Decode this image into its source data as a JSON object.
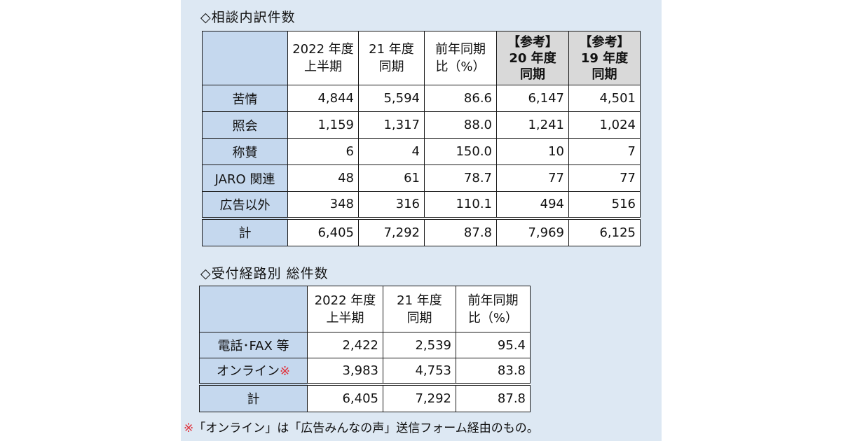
{
  "table1": {
    "heading": "◇相談内訳件数",
    "headers": [
      [
        "2022 年度",
        "上半期"
      ],
      [
        "21 年度",
        "同期"
      ],
      [
        "前年同期",
        "比（%）"
      ],
      [
        "【参考】",
        "20 年度",
        "同期"
      ],
      [
        "【参考】",
        "19 年度",
        "同期"
      ]
    ],
    "rows": [
      {
        "label": "苦情",
        "values": [
          "4,844",
          "5,594",
          "86.6",
          "6,147",
          "4,501"
        ]
      },
      {
        "label": "照会",
        "values": [
          "1,159",
          "1,317",
          "88.0",
          "1,241",
          "1,024"
        ]
      },
      {
        "label": "称賛",
        "values": [
          "6",
          "4",
          "150.0",
          "10",
          "7"
        ]
      },
      {
        "label": "JARO 関連",
        "values": [
          "48",
          "61",
          "78.7",
          "77",
          "77"
        ]
      },
      {
        "label": "広告以外",
        "values": [
          "348",
          "316",
          "110.1",
          "494",
          "516"
        ]
      },
      {
        "label": "計",
        "values": [
          "6,405",
          "7,292",
          "87.8",
          "7,969",
          "6,125"
        ]
      }
    ]
  },
  "table2": {
    "heading": "◇受付経路別 総件数",
    "headers": [
      [
        "2022 年度",
        "上半期"
      ],
      [
        "21 年度",
        "同期"
      ],
      [
        "前年同期",
        "比（%）"
      ]
    ],
    "rows": [
      {
        "label": "電話･FAX 等",
        "values": [
          "2,422",
          "2,539",
          "95.4"
        ]
      },
      {
        "label": "オンライン",
        "mark": "※",
        "values": [
          "3,983",
          "4,753",
          "83.8"
        ]
      },
      {
        "label": "計",
        "values": [
          "6,405",
          "7,292",
          "87.8"
        ]
      }
    ]
  },
  "footnote": {
    "mark": "※",
    "text": "「オンライン」は「広告みんなの声」送信フォーム経由のもの。"
  },
  "colors": {
    "panel_background": "#dde8f3",
    "row_header_fill": "#c5d8ee",
    "reference_header_fill": "#d9d9d9",
    "note_mark": "#e0323c"
  }
}
